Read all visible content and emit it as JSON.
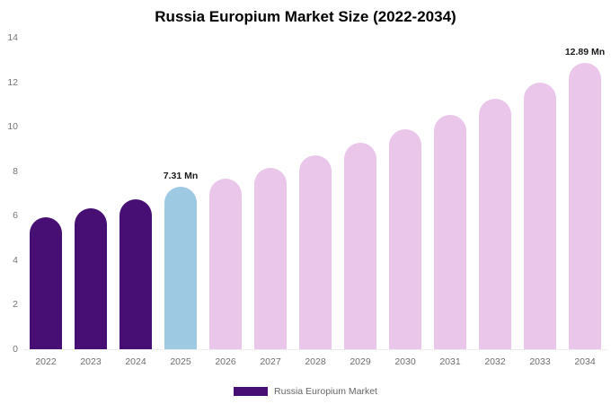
{
  "colors": {
    "historical_bar": "#470F73",
    "highlight_bar": "#9EC9E3",
    "forecast_bar": "#E9C6EA",
    "legend_swatch": "#470F73",
    "axis_text": "#757575",
    "annotation_text": "#1a1a1a",
    "background": "#ffffff"
  },
  "chart_data": {
    "type": "bar",
    "title": "Russia Europium Market Size (2022-2034)",
    "xlabel": "",
    "ylabel": "",
    "ylim": [
      0,
      14
    ],
    "yticks": [
      0,
      2,
      4,
      6,
      8,
      10,
      12,
      14
    ],
    "grid": false,
    "categories": [
      "2022",
      "2023",
      "2024",
      "2025",
      "2026",
      "2027",
      "2028",
      "2029",
      "2030",
      "2031",
      "2032",
      "2033",
      "2034"
    ],
    "values": [
      5.95,
      6.35,
      6.75,
      7.31,
      7.68,
      8.15,
      8.7,
      9.28,
      9.9,
      10.55,
      11.25,
      12.0,
      12.89
    ],
    "bar_colors": [
      "#470F73",
      "#470F73",
      "#470F73",
      "#9EC9E3",
      "#E9C6EA",
      "#E9C6EA",
      "#E9C6EA",
      "#E9C6EA",
      "#E9C6EA",
      "#E9C6EA",
      "#E9C6EA",
      "#E9C6EA",
      "#E9C6EA"
    ],
    "annotations": [
      {
        "category": "2025",
        "text": "7.31 Mn"
      },
      {
        "category": "2034",
        "text": "12.89 Mn"
      }
    ],
    "legend": {
      "position": "bottom",
      "items": [
        {
          "label": "Russia Europium Market",
          "color": "#470F73"
        }
      ]
    }
  }
}
